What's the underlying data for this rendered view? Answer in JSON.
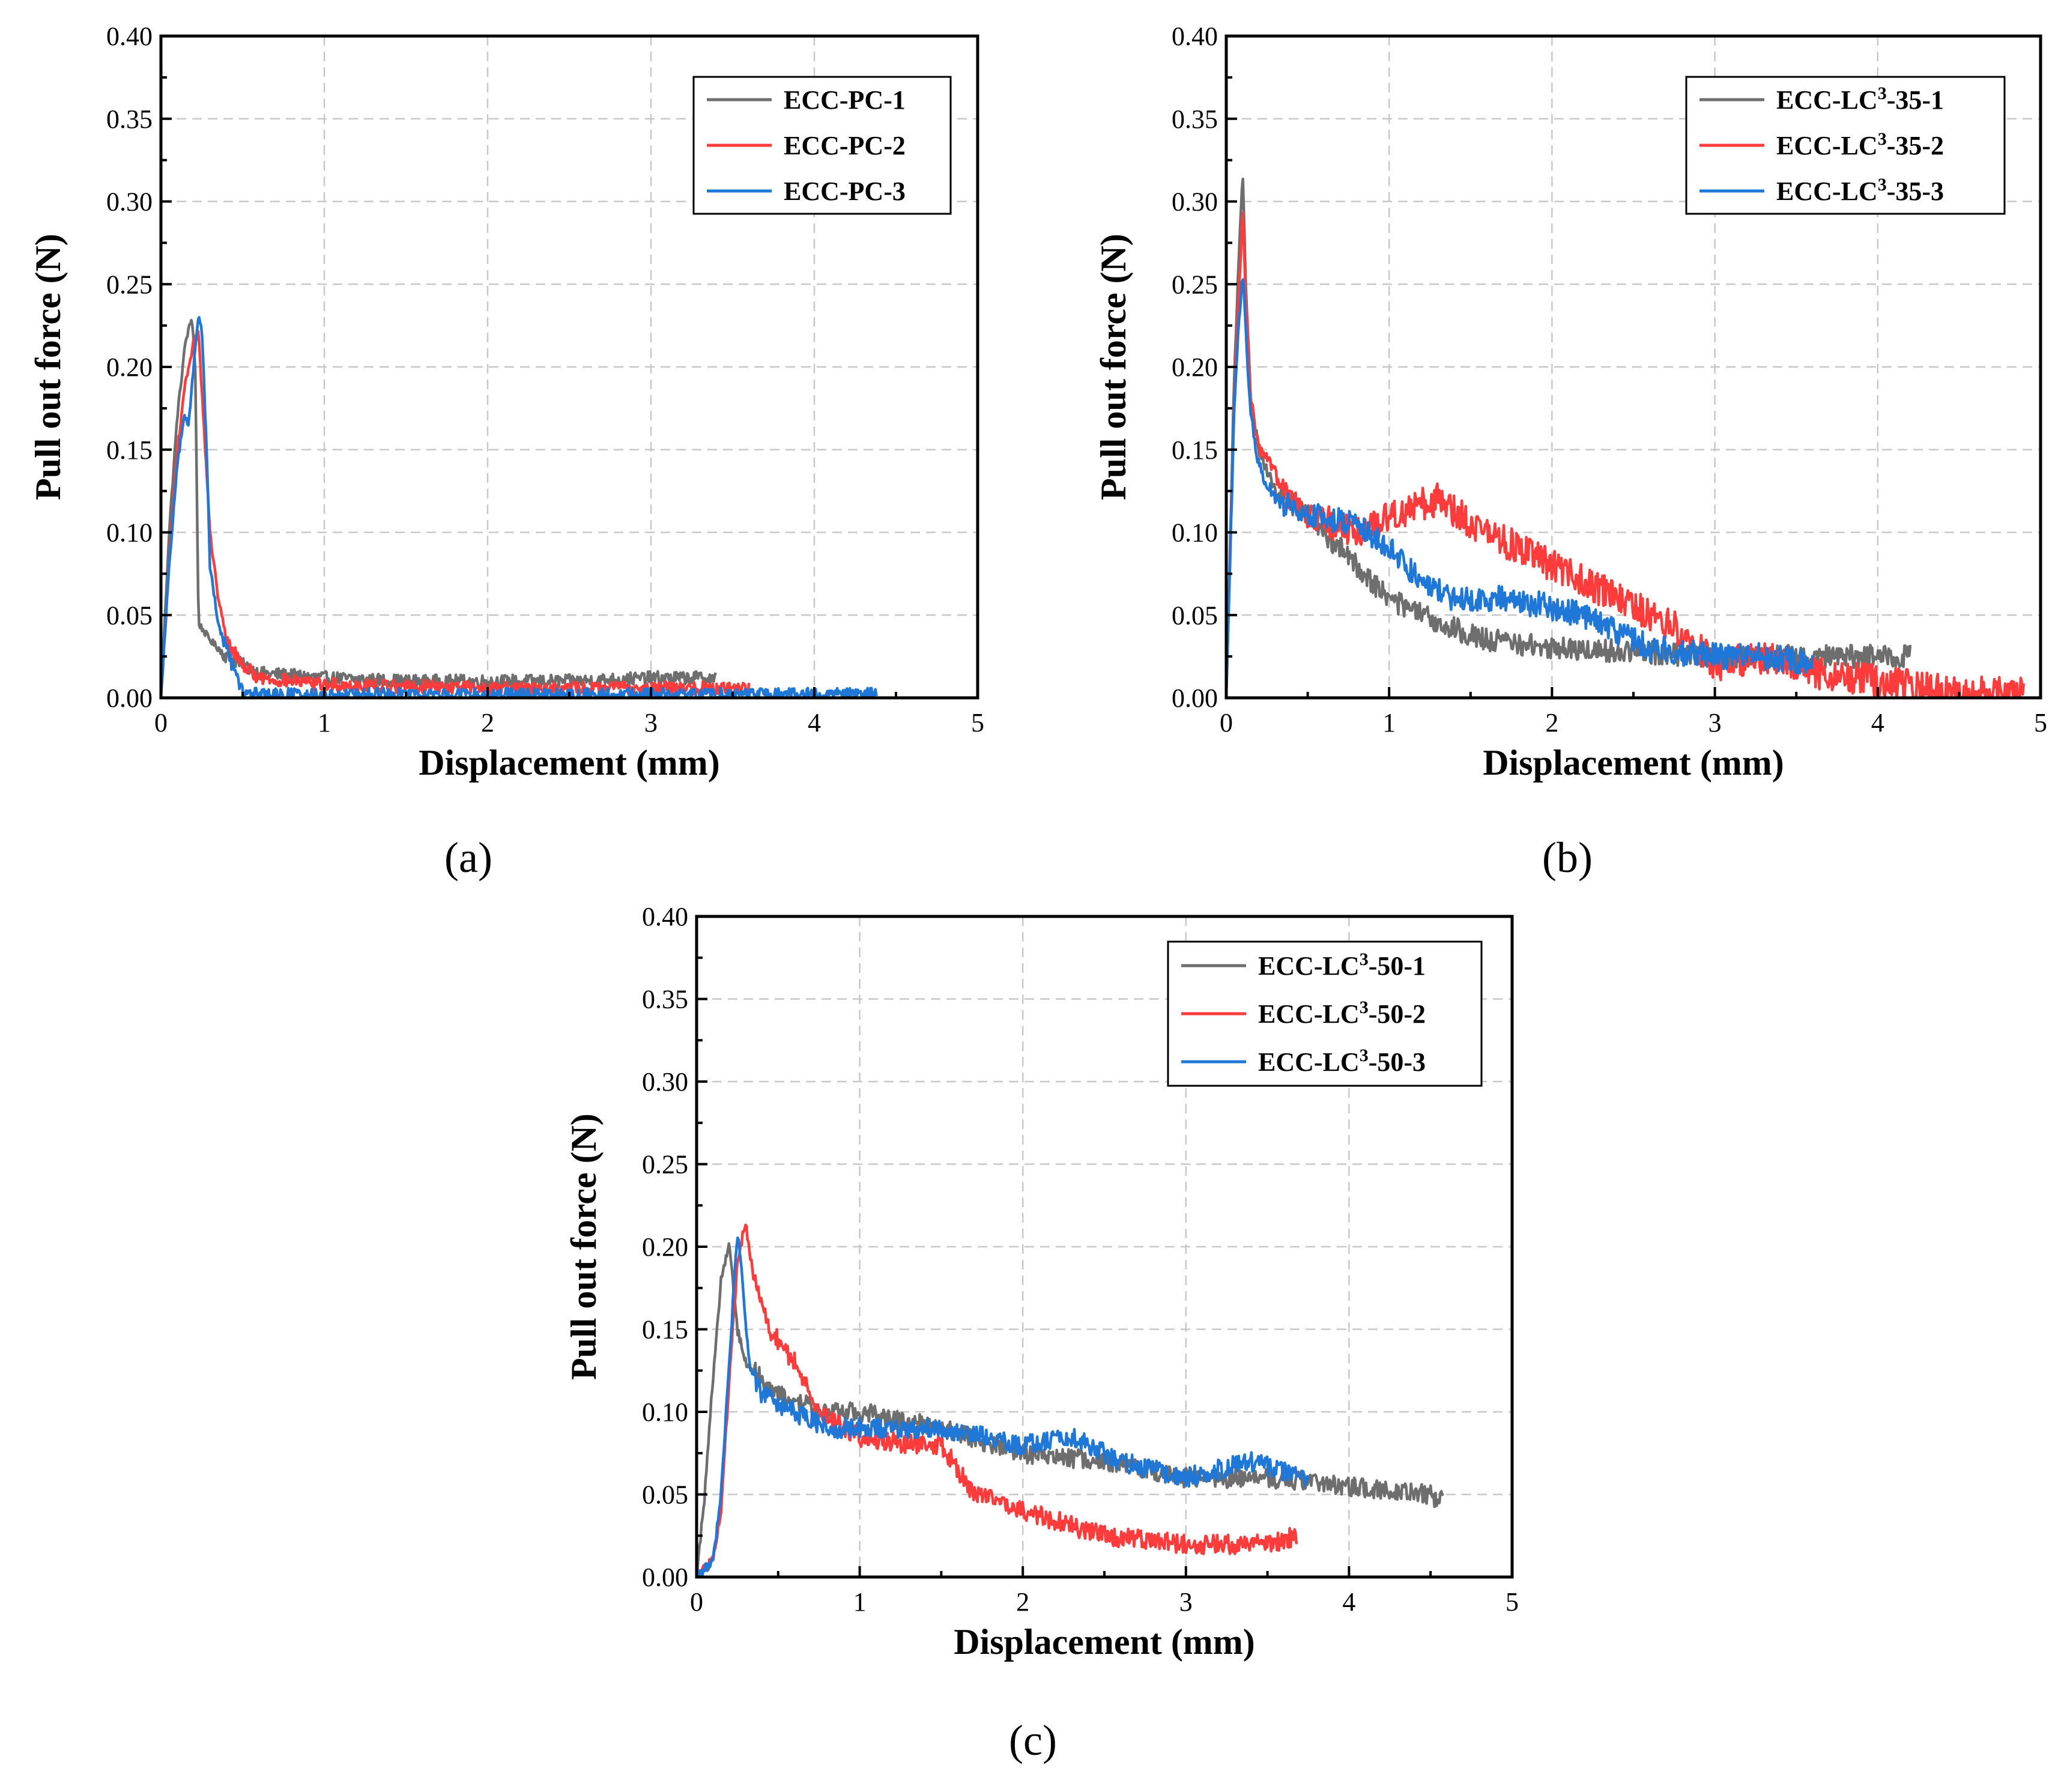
{
  "chart_data": [
    {
      "id": "a",
      "type": "line",
      "panel_label": "(a)",
      "xlabel": "Displacement (mm)",
      "ylabel": "Pull out force (N)",
      "xlim": [
        0,
        5
      ],
      "ylim": [
        0,
        0.4
      ],
      "xticks": [
        0,
        1,
        2,
        3,
        4,
        5
      ],
      "xtick_labels": [
        "0",
        "1",
        "2",
        "3",
        "4",
        "5"
      ],
      "yticks": [
        0,
        0.05,
        0.1,
        0.15,
        0.2,
        0.25,
        0.3,
        0.35,
        0.4
      ],
      "ytick_labels": [
        "0.00",
        "0.05",
        "0.10",
        "0.15",
        "0.20",
        "0.25",
        "0.30",
        "0.35",
        "0.40"
      ],
      "grid": true,
      "legend_position": "top-right",
      "series": [
        {
          "name": "ECC-PC-1",
          "color": "#6e6e6e",
          "noise": 0.004,
          "x": [
            0,
            0.05,
            0.1,
            0.15,
            0.19,
            0.21,
            0.23,
            0.3,
            0.4,
            0.5,
            0.6,
            1.0,
            1.5,
            2.0,
            2.5,
            3.0,
            3.4
          ],
          "y": [
            0,
            0.1,
            0.17,
            0.215,
            0.23,
            0.2,
            0.045,
            0.035,
            0.025,
            0.02,
            0.015,
            0.012,
            0.01,
            0.01,
            0.01,
            0.012,
            0.012
          ]
        },
        {
          "name": "ECC-PC-2",
          "color": "#ff3b3b",
          "noise": 0.004,
          "x": [
            0,
            0.05,
            0.1,
            0.15,
            0.2,
            0.23,
            0.26,
            0.3,
            0.35,
            0.4,
            0.5,
            0.6,
            1.0,
            2.0,
            3.0,
            3.6
          ],
          "y": [
            0,
            0.08,
            0.15,
            0.19,
            0.215,
            0.22,
            0.17,
            0.1,
            0.06,
            0.035,
            0.02,
            0.012,
            0.008,
            0.006,
            0.006,
            0.006
          ]
        },
        {
          "name": "ECC-PC-3",
          "color": "#1f77d8",
          "noise": 0.004,
          "x": [
            0,
            0.05,
            0.1,
            0.14,
            0.17,
            0.2,
            0.23,
            0.25,
            0.28,
            0.3,
            0.35,
            0.4,
            0.45,
            0.5,
            0.6,
            1.0,
            2.0,
            3.0,
            4.0,
            4.38
          ],
          "y": [
            0,
            0.08,
            0.14,
            0.17,
            0.165,
            0.2,
            0.232,
            0.225,
            0.15,
            0.08,
            0.045,
            0.03,
            0.015,
            0.003,
            0.002,
            0.002,
            0.002,
            0.002,
            0.002,
            0.002
          ]
        }
      ],
      "legend": [
        "ECC-PC-1",
        "ECC-PC-2",
        "ECC-PC-3"
      ]
    },
    {
      "id": "b",
      "type": "line",
      "panel_label": "(b)",
      "xlabel": "Displacement (mm)",
      "ylabel": "Pull out force (N)",
      "xlim": [
        0,
        5
      ],
      "ylim": [
        0,
        0.4
      ],
      "xticks": [
        0,
        1,
        2,
        3,
        4,
        5
      ],
      "xtick_labels": [
        "0",
        "1",
        "2",
        "3",
        "4",
        "5"
      ],
      "yticks": [
        0,
        0.05,
        0.1,
        0.15,
        0.2,
        0.25,
        0.3,
        0.35,
        0.4
      ],
      "ytick_labels": [
        "0.00",
        "0.05",
        "0.10",
        "0.15",
        "0.20",
        "0.25",
        "0.30",
        "0.35",
        "0.40"
      ],
      "grid": true,
      "legend_position": "top-right",
      "series": [
        {
          "name": "ECC-LC3-35-1",
          "legend_main": "ECC-LC",
          "legend_sup": "3",
          "legend_tail": "-35-1",
          "color": "#6e6e6e",
          "noise": 0.007,
          "x": [
            0,
            0.05,
            0.1,
            0.12,
            0.15,
            0.2,
            0.3,
            0.5,
            0.8,
            1.0,
            1.3,
            1.6,
            2.0,
            2.5,
            3.0,
            3.5,
            4.0,
            4.2
          ],
          "y": [
            0,
            0.2,
            0.32,
            0.25,
            0.18,
            0.15,
            0.125,
            0.11,
            0.08,
            0.06,
            0.045,
            0.035,
            0.03,
            0.028,
            0.025,
            0.025,
            0.025,
            0.025
          ]
        },
        {
          "name": "ECC-LC3-35-2",
          "legend_main": "ECC-LC",
          "legend_sup": "3",
          "legend_tail": "-35-2",
          "color": "#ff3b3b",
          "noise": 0.01,
          "x": [
            0,
            0.05,
            0.1,
            0.12,
            0.15,
            0.2,
            0.3,
            0.5,
            0.8,
            1.0,
            1.3,
            1.6,
            2.0,
            2.4,
            2.8,
            3.0,
            3.3,
            3.6,
            4.0,
            4.5,
            4.9
          ],
          "y": [
            0,
            0.18,
            0.295,
            0.24,
            0.18,
            0.15,
            0.135,
            0.11,
            0.1,
            0.11,
            0.12,
            0.1,
            0.08,
            0.06,
            0.04,
            0.02,
            0.025,
            0.015,
            0.01,
            0.003,
            0.003
          ]
        },
        {
          "name": "ECC-LC3-35-3",
          "legend_main": "ECC-LC",
          "legend_sup": "3",
          "legend_tail": "-35-3",
          "color": "#1f77d8",
          "noise": 0.008,
          "x": [
            0,
            0.05,
            0.1,
            0.12,
            0.15,
            0.2,
            0.3,
            0.5,
            0.8,
            1.0,
            1.2,
            1.4,
            1.7,
            2.0,
            2.2,
            2.6,
            3.0,
            3.3,
            3.6
          ],
          "y": [
            0,
            0.18,
            0.26,
            0.22,
            0.17,
            0.14,
            0.12,
            0.11,
            0.105,
            0.09,
            0.07,
            0.06,
            0.06,
            0.055,
            0.05,
            0.03,
            0.025,
            0.025,
            0.02
          ]
        }
      ],
      "legend": [
        "ECC-LC3-35-1",
        "ECC-LC3-35-2",
        "ECC-LC3-35-3"
      ]
    },
    {
      "id": "c",
      "type": "line",
      "panel_label": "(c)",
      "xlabel": "Displacement (mm)",
      "ylabel": "Pull out force (N)",
      "xlim": [
        0,
        5
      ],
      "ylim": [
        0,
        0.4
      ],
      "xticks": [
        0,
        1,
        2,
        3,
        4,
        5
      ],
      "xtick_labels": [
        "0",
        "1",
        "2",
        "3",
        "4",
        "5"
      ],
      "yticks": [
        0,
        0.05,
        0.1,
        0.15,
        0.2,
        0.25,
        0.3,
        0.35,
        0.4
      ],
      "ytick_labels": [
        "0.00",
        "0.05",
        "0.10",
        "0.15",
        "0.20",
        "0.25",
        "0.30",
        "0.35",
        "0.40"
      ],
      "grid": true,
      "legend_position": "top-right",
      "series": [
        {
          "name": "ECC-LC3-50-1",
          "legend_main": "ECC-LC",
          "legend_sup": "3",
          "legend_tail": "-50-1",
          "color": "#6e6e6e",
          "noise": 0.006,
          "x": [
            0,
            0.05,
            0.1,
            0.15,
            0.2,
            0.25,
            0.3,
            0.5,
            0.8,
            1.0,
            1.5,
            2.0,
            2.5,
            3.0,
            3.5,
            4.0,
            4.5,
            4.58
          ],
          "y": [
            0,
            0.05,
            0.12,
            0.18,
            0.2,
            0.15,
            0.13,
            0.11,
            0.1,
            0.1,
            0.09,
            0.075,
            0.07,
            0.06,
            0.06,
            0.055,
            0.05,
            0.045
          ]
        },
        {
          "name": "ECC-LC3-50-2",
          "legend_main": "ECC-LC",
          "legend_sup": "3",
          "legend_tail": "-50-2",
          "color": "#ff3b3b",
          "noise": 0.006,
          "x": [
            0,
            0.1,
            0.15,
            0.2,
            0.25,
            0.3,
            0.35,
            0.45,
            0.6,
            0.75,
            1.0,
            1.3,
            1.5,
            1.7,
            2.0,
            2.5,
            3.0,
            3.5,
            3.68
          ],
          "y": [
            0,
            0.01,
            0.04,
            0.12,
            0.19,
            0.215,
            0.18,
            0.15,
            0.13,
            0.1,
            0.085,
            0.08,
            0.08,
            0.05,
            0.04,
            0.025,
            0.02,
            0.02,
            0.025
          ]
        },
        {
          "name": "ECC-LC3-50-3",
          "legend_main": "ECC-LC",
          "legend_sup": "3",
          "legend_tail": "-50-3",
          "color": "#1f77d8",
          "noise": 0.006,
          "x": [
            0,
            0.1,
            0.15,
            0.2,
            0.25,
            0.28,
            0.32,
            0.4,
            0.6,
            0.8,
            1.0,
            1.5,
            2.0,
            2.3,
            2.6,
            3.0,
            3.4,
            3.75
          ],
          "y": [
            0,
            0.01,
            0.05,
            0.13,
            0.21,
            0.18,
            0.13,
            0.11,
            0.1,
            0.09,
            0.09,
            0.09,
            0.08,
            0.085,
            0.07,
            0.06,
            0.07,
            0.06
          ]
        }
      ],
      "legend": [
        "ECC-LC3-50-1",
        "ECC-LC3-50-2",
        "ECC-LC3-50-3"
      ]
    }
  ]
}
